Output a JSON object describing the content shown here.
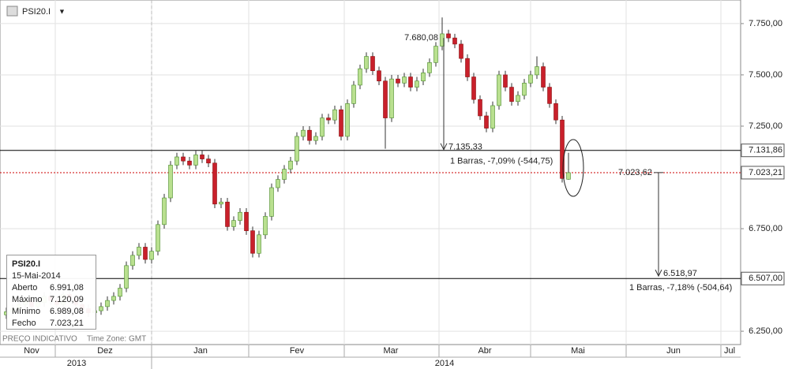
{
  "chart_data": {
    "type": "candlestick",
    "title": "PSI20.I",
    "open": [
      6330,
      6345,
      6360,
      6380,
      6400,
      6370,
      6390,
      6420,
      6400,
      6380,
      6430,
      6410,
      6380,
      6360,
      6340,
      6350,
      6370,
      6400,
      6420,
      6460,
      6570,
      6620,
      6660,
      6600,
      6640,
      6770,
      6900,
      7060,
      7100,
      7080,
      7060,
      7110,
      7090,
      7070,
      6870,
      6880,
      6760,
      6790,
      6830,
      6740,
      6630,
      6720,
      6810,
      6950,
      6990,
      7040,
      7080,
      7200,
      7230,
      7180,
      7200,
      7290,
      7280,
      7330,
      7200,
      7360,
      7450,
      7530,
      7590,
      7520,
      7470,
      7290,
      7480,
      7460,
      7490,
      7440,
      7470,
      7510,
      7560,
      7640,
      7700,
      7680,
      7650,
      7580,
      7490,
      7380,
      7300,
      7240,
      7350,
      7500,
      7440,
      7370,
      7400,
      7460,
      7500,
      7540,
      7440,
      7360,
      7280,
      6991.08
    ],
    "high": [
      6365,
      6380,
      6400,
      6420,
      6420,
      6410,
      6440,
      6440,
      6420,
      6450,
      6450,
      6430,
      6400,
      6380,
      6370,
      6390,
      6420,
      6440,
      6480,
      6590,
      6640,
      6680,
      6680,
      6660,
      6790,
      6920,
      7080,
      7120,
      7120,
      7100,
      7130,
      7130,
      7110,
      7090,
      6900,
      6900,
      6810,
      6850,
      6850,
      6760,
      6740,
      6830,
      6970,
      7010,
      7060,
      7100,
      7220,
      7250,
      7250,
      7220,
      7310,
      7310,
      7350,
      7350,
      7380,
      7470,
      7550,
      7610,
      7610,
      7540,
      7490,
      7500,
      7500,
      7510,
      7510,
      7490,
      7530,
      7580,
      7660,
      7780,
      7720,
      7700,
      7670,
      7600,
      7510,
      7400,
      7320,
      7370,
      7520,
      7520,
      7460,
      7420,
      7480,
      7520,
      7590,
      7560,
      7460,
      7380,
      7300,
      7120.09
    ],
    "low": [
      6310,
      6325,
      6340,
      6360,
      6350,
      6350,
      6370,
      6380,
      6360,
      6360,
      6390,
      6360,
      6340,
      6320,
      6320,
      6330,
      6350,
      6380,
      6400,
      6440,
      6550,
      6600,
      6580,
      6580,
      6620,
      6750,
      6880,
      7040,
      7060,
      7040,
      7040,
      7070,
      7050,
      6850,
      6850,
      6740,
      6740,
      6770,
      6720,
      6610,
      6610,
      6700,
      6790,
      6930,
      6970,
      7020,
      7060,
      7180,
      7160,
      7160,
      7180,
      7260,
      7260,
      7180,
      7180,
      7340,
      7430,
      7510,
      7500,
      7450,
      7140,
      7270,
      7440,
      7440,
      7420,
      7420,
      7450,
      7490,
      7540,
      7620,
      7660,
      7630,
      7560,
      7470,
      7360,
      7280,
      7220,
      7220,
      7330,
      7420,
      7350,
      7350,
      7380,
      7440,
      7480,
      7420,
      7340,
      7260,
      6975,
      6989.08
    ],
    "close": [
      6345,
      6360,
      6380,
      6400,
      6370,
      6390,
      6420,
      6400,
      6380,
      6430,
      6410,
      6380,
      6360,
      6340,
      6350,
      6370,
      6400,
      6420,
      6460,
      6570,
      6620,
      6660,
      6600,
      6640,
      6770,
      6900,
      7060,
      7100,
      7080,
      7060,
      7110,
      7090,
      7070,
      6870,
      6880,
      6760,
      6790,
      6830,
      6740,
      6630,
      6720,
      6810,
      6950,
      6990,
      7040,
      7080,
      7200,
      7230,
      7180,
      7200,
      7290,
      7280,
      7330,
      7200,
      7360,
      7450,
      7530,
      7590,
      7520,
      7470,
      7290,
      7480,
      7460,
      7490,
      7440,
      7470,
      7510,
      7560,
      7640,
      7700,
      7680,
      7650,
      7580,
      7490,
      7380,
      7300,
      7240,
      7350,
      7500,
      7440,
      7370,
      7400,
      7460,
      7500,
      7540,
      7440,
      7360,
      7280,
      6995,
      7023.21
    ],
    "up_color": "#b9e08f",
    "down_color": "#c9202b",
    "ylim": [
      6185,
      7865
    ],
    "yticks": [
      {
        "value": 7750,
        "label": "7.750,00"
      },
      {
        "value": 7500,
        "label": "7.500,00"
      },
      {
        "value": 7250,
        "label": "7.250,00"
      },
      {
        "value": 6750,
        "label": "6.750,00"
      },
      {
        "value": 6250,
        "label": "6.250,00"
      }
    ],
    "months": [
      "Nov",
      "Dez",
      "Jan",
      "Fev",
      "Mar",
      "Abr",
      "Mai",
      "Jun",
      "Jul"
    ],
    "years": [
      "2013",
      "2014"
    ],
    "hlines": [
      {
        "value": 7131.86,
        "label": "7.131,86",
        "color": "#000000"
      },
      {
        "value": 7023.21,
        "label": "7.023,21",
        "color": "#cc0000"
      },
      {
        "value": 6507.0,
        "label": "6.507,00",
        "color": "#000000"
      }
    ],
    "measures": [
      {
        "from": {
          "value": 7680.08,
          "label": "7.680,08"
        },
        "to": {
          "value": 7135.33,
          "label": "7.135,33"
        },
        "text": "1 Barras, -7,09% (-544,75)"
      },
      {
        "from": {
          "value": 7023.62,
          "label": "7.023,62"
        },
        "to": {
          "value": 6518.97,
          "label": "6.518,97"
        },
        "text": "1 Barras, -7,18% (-504,64)"
      }
    ],
    "info": {
      "title": "PSI20.I",
      "date": "15-Mai-2014",
      "rows": [
        [
          "Aberto",
          "6.991,08"
        ],
        [
          "Máximo",
          "7.120,09"
        ],
        [
          "Mínimo",
          "6.989,08"
        ],
        [
          "Fecho",
          "7.023,21"
        ]
      ]
    },
    "footer": [
      "PREÇO INDICATIVO",
      "Time Zone: GMT"
    ],
    "grid": true
  }
}
